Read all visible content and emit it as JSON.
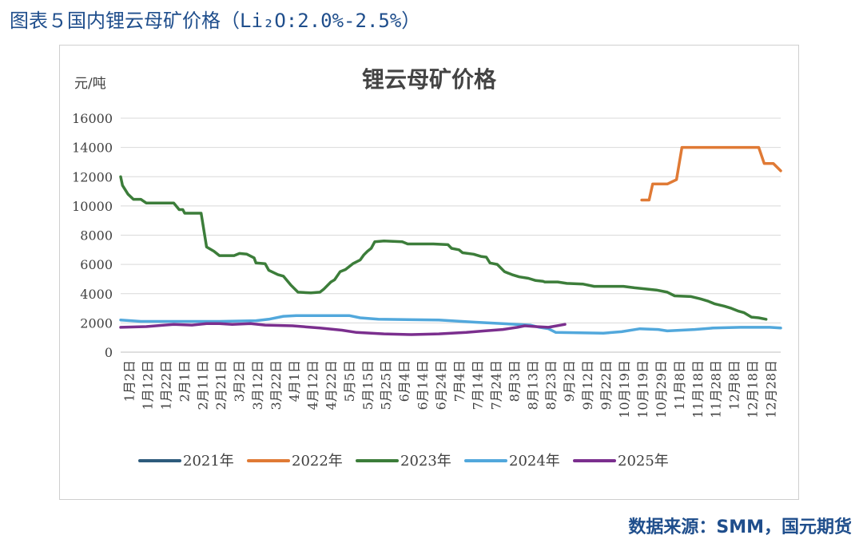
{
  "figure": {
    "caption_prefix": "图表５国内锂云母矿价格",
    "caption_suffix": "（Li₂O:2.0%-2.5%）",
    "source": "数据来源：SMM，国元期货"
  },
  "colors": {
    "caption": "#1f4e8c",
    "grid": "#d9d9d9",
    "series_2021": "#2e5b7c",
    "series_2022": "#e07a35",
    "series_2023": "#3c7d3a",
    "series_2024": "#52a8dc",
    "series_2025": "#7b2f8e"
  },
  "chart_data": {
    "type": "line",
    "title": "锂云母矿价格",
    "ylabel": "元/吨",
    "ylim": [
      0,
      16000
    ],
    "yticks": [
      0,
      2000,
      4000,
      6000,
      8000,
      10000,
      12000,
      14000,
      16000
    ],
    "xlim": [
      1,
      362
    ],
    "x_unit": "day of year",
    "xtick_labels": [
      "1月2日",
      "1月12日",
      "1月22日",
      "2月1日",
      "2月11日",
      "2月21日",
      "3月2日",
      "3月12日",
      "3月22日",
      "4月1日",
      "4月12日",
      "4月22日",
      "5月5日",
      "5月15日",
      "5月25日",
      "6月4日",
      "6月14日",
      "6月24日",
      "7月4日",
      "7月14日",
      "7月24日",
      "8月3日",
      "8月13日",
      "8月23日",
      "9月2日",
      "9月12日",
      "9月22日",
      "10月19日",
      "10月19日",
      "10月29日",
      "11月8日",
      "11月18日",
      "11月28日",
      "12月8日",
      "12月18日",
      "12月28日"
    ],
    "legend_position": "bottom",
    "grid": true,
    "series": [
      {
        "name": "2021年",
        "points": []
      },
      {
        "name": "2022年",
        "points": [
          [
            286,
            10400
          ],
          [
            290,
            10400
          ],
          [
            292,
            11500
          ],
          [
            300,
            11500
          ],
          [
            305,
            11800
          ],
          [
            308,
            14000
          ],
          [
            350,
            14000
          ],
          [
            353,
            12900
          ],
          [
            358,
            12900
          ],
          [
            362,
            12400
          ]
        ]
      },
      {
        "name": "2023年",
        "points": [
          [
            1,
            12000
          ],
          [
            2,
            11400
          ],
          [
            5,
            10800
          ],
          [
            8,
            10450
          ],
          [
            12,
            10450
          ],
          [
            15,
            10200
          ],
          [
            30,
            10200
          ],
          [
            33,
            9750
          ],
          [
            35,
            9750
          ],
          [
            36,
            9500
          ],
          [
            45,
            9500
          ],
          [
            48,
            7200
          ],
          [
            52,
            6900
          ],
          [
            55,
            6600
          ],
          [
            63,
            6600
          ],
          [
            66,
            6750
          ],
          [
            70,
            6700
          ],
          [
            74,
            6450
          ],
          [
            75,
            6100
          ],
          [
            80,
            6050
          ],
          [
            82,
            5600
          ],
          [
            87,
            5300
          ],
          [
            90,
            5200
          ],
          [
            94,
            4600
          ],
          [
            98,
            4100
          ],
          [
            105,
            4050
          ],
          [
            110,
            4100
          ],
          [
            112,
            4300
          ],
          [
            116,
            4800
          ],
          [
            118,
            4950
          ],
          [
            121,
            5500
          ],
          [
            124,
            5650
          ],
          [
            128,
            6050
          ],
          [
            132,
            6300
          ],
          [
            134,
            6650
          ],
          [
            136,
            6900
          ],
          [
            138,
            7100
          ],
          [
            140,
            7550
          ],
          [
            145,
            7600
          ],
          [
            155,
            7550
          ],
          [
            158,
            7400
          ],
          [
            172,
            7400
          ],
          [
            180,
            7350
          ],
          [
            182,
            7100
          ],
          [
            186,
            7000
          ],
          [
            188,
            6800
          ],
          [
            194,
            6700
          ],
          [
            198,
            6550
          ],
          [
            201,
            6500
          ],
          [
            203,
            6100
          ],
          [
            207,
            6000
          ],
          [
            211,
            5500
          ],
          [
            215,
            5300
          ],
          [
            219,
            5150
          ],
          [
            224,
            5050
          ],
          [
            228,
            4900
          ],
          [
            232,
            4850
          ],
          [
            233,
            4800
          ],
          [
            240,
            4800
          ],
          [
            245,
            4700
          ],
          [
            254,
            4650
          ],
          [
            260,
            4500
          ],
          [
            276,
            4500
          ],
          [
            282,
            4400
          ],
          [
            294,
            4250
          ],
          [
            300,
            4100
          ],
          [
            304,
            3850
          ],
          [
            313,
            3800
          ],
          [
            318,
            3650
          ],
          [
            322,
            3500
          ],
          [
            326,
            3300
          ],
          [
            331,
            3150
          ],
          [
            335,
            3000
          ],
          [
            339,
            2800
          ],
          [
            342,
            2700
          ],
          [
            346,
            2400
          ],
          [
            350,
            2350
          ],
          [
            354,
            2250
          ]
        ]
      },
      {
        "name": "2024年",
        "points": [
          [
            1,
            2200
          ],
          [
            12,
            2100
          ],
          [
            55,
            2100
          ],
          [
            75,
            2150
          ],
          [
            82,
            2250
          ],
          [
            90,
            2450
          ],
          [
            97,
            2500
          ],
          [
            126,
            2500
          ],
          [
            132,
            2350
          ],
          [
            142,
            2250
          ],
          [
            175,
            2200
          ],
          [
            195,
            2050
          ],
          [
            225,
            1850
          ],
          [
            230,
            1700
          ],
          [
            235,
            1600
          ],
          [
            239,
            1350
          ],
          [
            265,
            1300
          ],
          [
            275,
            1400
          ],
          [
            285,
            1600
          ],
          [
            295,
            1550
          ],
          [
            300,
            1450
          ],
          [
            315,
            1550
          ],
          [
            325,
            1650
          ],
          [
            340,
            1700
          ],
          [
            345,
            1700
          ],
          [
            356,
            1700
          ],
          [
            362,
            1650
          ]
        ]
      },
      {
        "name": "2025年",
        "points": [
          [
            1,
            1700
          ],
          [
            15,
            1750
          ],
          [
            25,
            1850
          ],
          [
            30,
            1900
          ],
          [
            40,
            1850
          ],
          [
            48,
            1950
          ],
          [
            55,
            1950
          ],
          [
            62,
            1900
          ],
          [
            72,
            1950
          ],
          [
            80,
            1850
          ],
          [
            95,
            1800
          ],
          [
            110,
            1650
          ],
          [
            122,
            1500
          ],
          [
            130,
            1350
          ],
          [
            145,
            1250
          ],
          [
            160,
            1200
          ],
          [
            175,
            1250
          ],
          [
            190,
            1350
          ],
          [
            200,
            1450
          ],
          [
            210,
            1550
          ],
          [
            218,
            1700
          ],
          [
            222,
            1800
          ],
          [
            228,
            1750
          ],
          [
            235,
            1700
          ],
          [
            244,
            1900
          ]
        ]
      }
    ]
  }
}
